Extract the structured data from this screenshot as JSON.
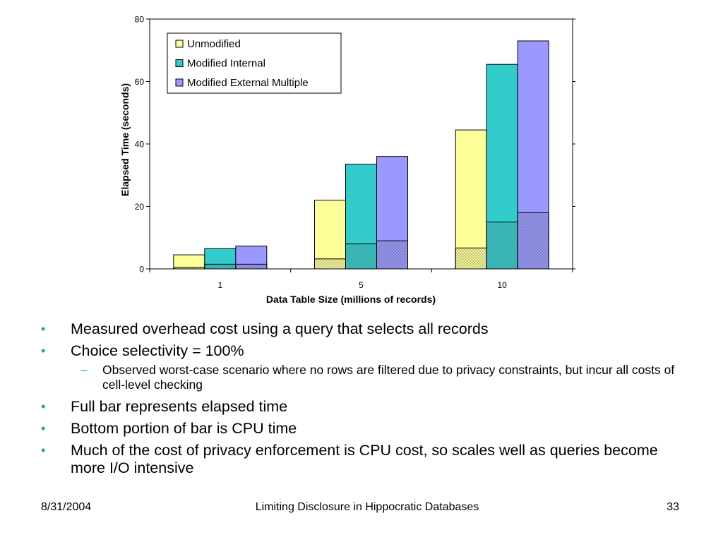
{
  "chart_data": {
    "type": "bar",
    "stacked_overlay": "bottom portion of each bar is hatched CPU time",
    "title": "",
    "xlabel": "Data Table Size (millions of records)",
    "ylabel": "Elapsed Time (seconds)",
    "ylim": [
      0,
      80
    ],
    "yticks": [
      0,
      20,
      40,
      60,
      80
    ],
    "categories": [
      "1",
      "5",
      "10"
    ],
    "legend_position": "top-left",
    "grid": false,
    "series": [
      {
        "name": "Unmodified",
        "color": "#ffff99",
        "elapsed": [
          4.5,
          22,
          44.5
        ],
        "cpu": [
          0.5,
          3.2,
          6.7
        ]
      },
      {
        "name": "Modified Internal",
        "color": "#33cccc",
        "elapsed": [
          6.5,
          33.5,
          65.5
        ],
        "cpu": [
          1.5,
          8,
          15
        ]
      },
      {
        "name": "Modified External Multiple",
        "color": "#9999ff",
        "elapsed": [
          7.3,
          36,
          73
        ],
        "cpu": [
          1.5,
          9,
          18
        ]
      }
    ]
  },
  "bullets": [
    {
      "text": "Measured overhead cost using a query that selects all records",
      "sub": []
    },
    {
      "text": "Choice selectivity = 100%",
      "sub": [
        "Observed worst-case scenario where no rows are filtered due to privacy constraints, but incur all costs of cell-level checking"
      ]
    },
    {
      "text": "Full bar represents elapsed time",
      "sub": []
    },
    {
      "text": "Bottom portion of bar is CPU time",
      "sub": []
    },
    {
      "text": "Much of the cost of privacy enforcement is CPU cost, so scales well as queries become more I/O intensive",
      "sub": []
    }
  ],
  "bullet_glyph": "•",
  "sub_glyph": "–",
  "footer": {
    "date": "8/31/2004",
    "title": "Limiting Disclosure in Hippocratic Databases",
    "page": "33"
  }
}
